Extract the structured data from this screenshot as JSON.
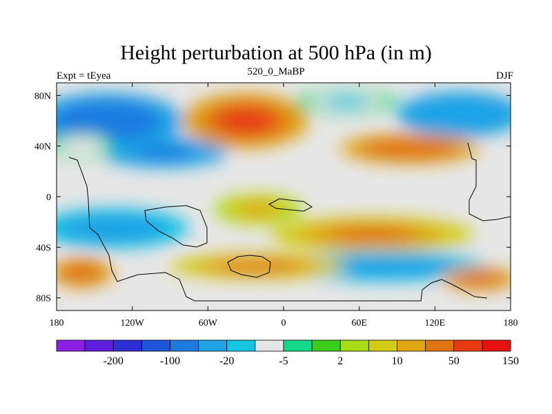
{
  "chart_data": {
    "type": "heatmap",
    "title": "Height perturbation at 500 hPa (in m)",
    "subtitle_left": "Expt = tEyea",
    "subtitle_center": "520_0_MaBP",
    "subtitle_right": "DJF",
    "xlabel": "",
    "ylabel": "",
    "xlim": [
      -180,
      180
    ],
    "ylim": [
      -90,
      90
    ],
    "x_ticks": [
      {
        "value": -180,
        "label": "180"
      },
      {
        "value": -120,
        "label": "120W"
      },
      {
        "value": -60,
        "label": "60W"
      },
      {
        "value": 0,
        "label": "0"
      },
      {
        "value": 60,
        "label": "60E"
      },
      {
        "value": 120,
        "label": "120E"
      },
      {
        "value": 180,
        "label": "180"
      }
    ],
    "y_ticks": [
      {
        "value": 80,
        "label": "80N"
      },
      {
        "value": 40,
        "label": "40N"
      },
      {
        "value": 0,
        "label": "0"
      },
      {
        "value": -40,
        "label": "40S"
      },
      {
        "value": -80,
        "label": "80S"
      }
    ],
    "colorbar": {
      "colors": [
        "#8c1fe6",
        "#5e1ee0",
        "#2f2fd6",
        "#1f55d8",
        "#1f7ae0",
        "#1fa3e6",
        "#16c5e6",
        "#e6e6e6",
        "#16d88a",
        "#3ccc1c",
        "#a8dc16",
        "#d2cc12",
        "#e0a614",
        "#e07412",
        "#e63a12",
        "#e6100e"
      ],
      "label_entries": [
        {
          "boundary_index": 2,
          "label": "-200"
        },
        {
          "boundary_index": 4,
          "label": "-100"
        },
        {
          "boundary_index": 6,
          "label": "-20"
        },
        {
          "boundary_index": 8,
          "label": "-5"
        },
        {
          "boundary_index": 10,
          "label": "2"
        },
        {
          "boundary_index": 12,
          "label": "10"
        },
        {
          "boundary_index": 14,
          "label": "50"
        },
        {
          "boundary_index": 16,
          "label": "150"
        }
      ]
    },
    "field_blobs": [
      {
        "lon": -140,
        "lat": 60,
        "rlon": 60,
        "rlat": 22,
        "value": -90
      },
      {
        "lon": -95,
        "lat": 35,
        "rlon": 50,
        "rlat": 12,
        "value": -70
      },
      {
        "lon": -30,
        "lat": 60,
        "rlon": 50,
        "rlat": 22,
        "value": 55
      },
      {
        "lon": 50,
        "lat": 75,
        "rlon": 40,
        "rlat": 10,
        "value": -12
      },
      {
        "lon": 140,
        "lat": 65,
        "rlon": 50,
        "rlat": 18,
        "value": -60
      },
      {
        "lon": 100,
        "lat": 38,
        "rlon": 55,
        "rlat": 12,
        "value": 48
      },
      {
        "lon": -135,
        "lat": -25,
        "rlon": 60,
        "rlat": 16,
        "value": -55
      },
      {
        "lon": -20,
        "lat": -10,
        "rlon": 35,
        "rlat": 12,
        "value": 12
      },
      {
        "lon": 70,
        "lat": -30,
        "rlon": 80,
        "rlat": 14,
        "value": 28
      },
      {
        "lon": 80,
        "lat": -55,
        "rlon": 80,
        "rlat": 12,
        "value": -40
      },
      {
        "lon": -20,
        "lat": -55,
        "rlon": 70,
        "rlat": 10,
        "value": 24
      },
      {
        "lon": -160,
        "lat": -60,
        "rlon": 25,
        "rlat": 12,
        "value": 45
      },
      {
        "lon": 155,
        "lat": -65,
        "rlon": 30,
        "rlat": 9,
        "value": 45
      },
      {
        "lon": -160,
        "lat": 40,
        "rlon": 25,
        "rlat": 10,
        "value": -8
      }
    ]
  }
}
